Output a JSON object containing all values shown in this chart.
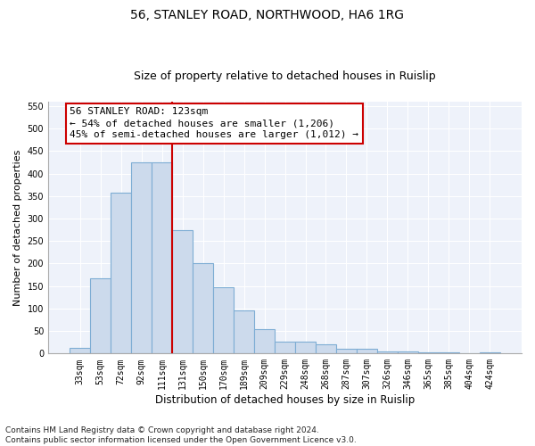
{
  "title1": "56, STANLEY ROAD, NORTHWOOD, HA6 1RG",
  "title2": "Size of property relative to detached houses in Ruislip",
  "xlabel": "Distribution of detached houses by size in Ruislip",
  "ylabel": "Number of detached properties",
  "categories": [
    "33sqm",
    "53sqm",
    "72sqm",
    "92sqm",
    "111sqm",
    "131sqm",
    "150sqm",
    "170sqm",
    "189sqm",
    "209sqm",
    "229sqm",
    "248sqm",
    "268sqm",
    "287sqm",
    "307sqm",
    "326sqm",
    "346sqm",
    "365sqm",
    "385sqm",
    "404sqm",
    "424sqm"
  ],
  "values": [
    12,
    168,
    357,
    425,
    425,
    275,
    200,
    148,
    95,
    55,
    27,
    27,
    20,
    10,
    10,
    5,
    5,
    3,
    3,
    1,
    2
  ],
  "bar_color": "#ccdaec",
  "bar_edge_color": "#7eadd4",
  "vline_x": 4.5,
  "vline_color": "#cc0000",
  "annotation_line1": "56 STANLEY ROAD: 123sqm",
  "annotation_line2": "← 54% of detached houses are smaller (1,206)",
  "annotation_line3": "45% of semi-detached houses are larger (1,012) →",
  "annotation_box_color": "#ffffff",
  "annotation_box_edge_color": "#cc0000",
  "ylim": [
    0,
    560
  ],
  "yticks": [
    0,
    50,
    100,
    150,
    200,
    250,
    300,
    350,
    400,
    450,
    500,
    550
  ],
  "background_color": "#eef2fa",
  "grid_color": "#ffffff",
  "footer": "Contains HM Land Registry data © Crown copyright and database right 2024.\nContains public sector information licensed under the Open Government Licence v3.0.",
  "title1_fontsize": 10,
  "title2_fontsize": 9,
  "xlabel_fontsize": 8.5,
  "ylabel_fontsize": 8,
  "tick_fontsize": 7,
  "annot_fontsize": 8,
  "footer_fontsize": 6.5
}
